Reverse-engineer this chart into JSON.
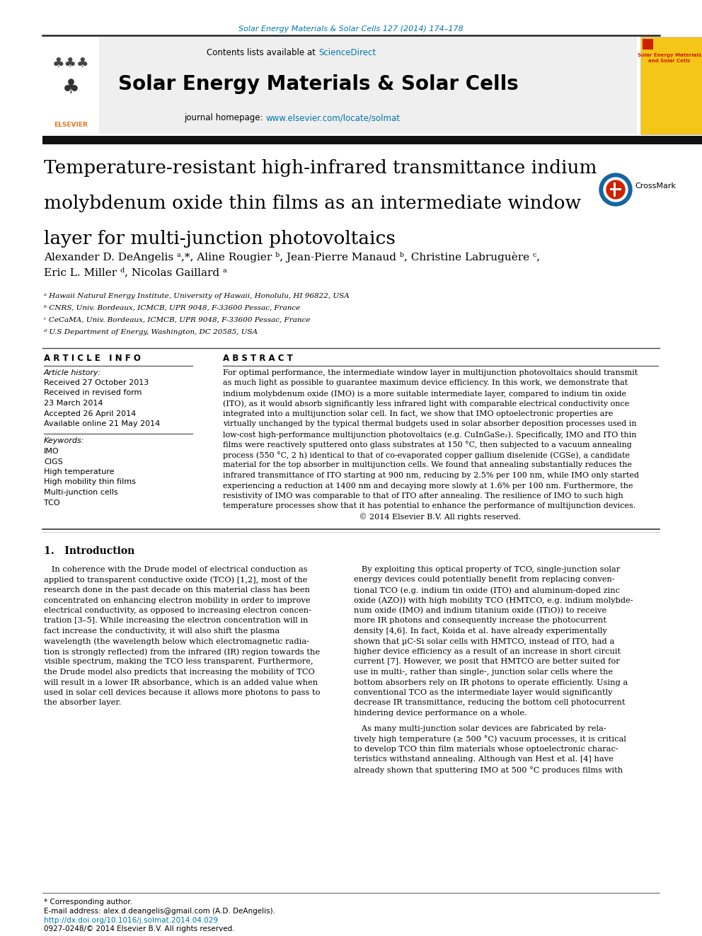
{
  "journal_ref": "Solar Energy Materials & Solar Cells 127 (2014) 174–178",
  "sciencedirect": "ScienceDirect",
  "journal_name": "Solar Energy Materials & Solar Cells",
  "homepage_url": "www.elsevier.com/locate/solmat",
  "paper_title_l1": "Temperature-resistant high-infrared transmittance indium",
  "paper_title_l2": "molybdenum oxide thin films as an intermediate window",
  "paper_title_l3": "layer for multi-junction photovoltaics",
  "authors_line1": "Alexander D. DeAngelis ᵃ,*, Aline Rougier ᵇ, Jean-Pierre Manaud ᵇ, Christine Labruguère ᶜ,",
  "authors_line2": "Eric L. Miller ᵈ, Nicolas Gaillard ᵃ",
  "affil_a": "ᵃ Hawaii Natural Energy Institute, University of Hawaii, Honolulu, HI 96822, USA",
  "affil_b": "ᵇ CNRS, Univ. Bordeaux, ICMCB, UPR 9048, F-33600 Pessac, France",
  "affil_c": "ᶜ CeCaMA, Univ. Bordeaux, ICMCB, UPR 9048, F-33600 Pessac, France",
  "affil_d": "ᵈ U.S Department of Energy, Washington, DC 20585, USA",
  "article_info_title": "A R T I C L E   I N F O",
  "abstract_title": "A B S T R A C T",
  "keywords": [
    "IMO",
    "CIGS",
    "High temperature",
    "High mobility thin films",
    "Multi-junction cells",
    "TCO"
  ],
  "abstract_lines": [
    "For optimal performance, the intermediate window layer in multijunction photovoltaics should transmit",
    "as much light as possible to guarantee maximum device efficiency. In this work, we demonstrate that",
    "indium molybdenum oxide (IMO) is a more suitable intermediate layer, compared to indium tin oxide",
    "(ITO), as it would absorb significantly less infrared light with comparable electrical conductivity once",
    "integrated into a multijunction solar cell. In fact, we show that IMO optoelectronic properties are",
    "virtually unchanged by the typical thermal budgets used in solar absorber deposition processes used in",
    "low-cost high-performance multijunction photovoltaics (e.g. CuInGaSe₂). Specifically, IMO and ITO thin",
    "films were reactively sputtered onto glass substrates at 150 °C, then subjected to a vacuum annealing",
    "process (550 °C, 2 h) identical to that of co-evaporated copper gallium diselenide (CGSe), a candidate",
    "material for the top absorber in multijunction cells. We found that annealing substantially reduces the",
    "infrared transmittance of ITO starting at 900 nm, reducing by 2.5% per 100 nm, while IMO only started",
    "experiencing a reduction at 1400 nm and decaying more slowly at 1.6% per 100 nm. Furthermore, the",
    "resistivity of IMO was comparable to that of ITO after annealing. The resilience of IMO to such high",
    "temperature processes show that it has potential to enhance the performance of multijunction devices.",
    "                                                       © 2014 Elsevier B.V. All rights reserved."
  ],
  "intro1_lines": [
    "   In coherence with the Drude model of electrical conduction as",
    "applied to transparent conductive oxide (TCO) [1,2], most of the",
    "research done in the past decade on this material class has been",
    "concentrated on enhancing electron mobility in order to improve",
    "electrical conductivity, as opposed to increasing electron concen-",
    "tration [3–5]. While increasing the electron concentration will in",
    "fact increase the conductivity, it will also shift the plasma",
    "wavelength (the wavelength below which electromagnetic radia-",
    "tion is strongly reflected) from the infrared (IR) region towards the",
    "visible spectrum, making the TCO less transparent. Furthermore,",
    "the Drude model also predicts that increasing the mobility of TCO",
    "will result in a lower IR absorbance, which is an added value when",
    "used in solar cell devices because it allows more photons to pass to",
    "the absorber layer."
  ],
  "intro2_lines": [
    "   By exploiting this optical property of TCO, single-junction solar",
    "energy devices could potentially benefit from replacing conven-",
    "tional TCO (e.g. indium tin oxide (ITO) and aluminum-doped zinc",
    "oxide (AZO)) with high mobility TCO (HMTCO, e.g. indium molybde-",
    "num oxide (IMO) and indium titanium oxide (ITiO)) to receive",
    "more IR photons and consequently increase the photocurrent",
    "density [4,6]. In fact, Koida et al. have already experimentally",
    "shown that µC-Si solar cells with HMTCO, instead of ITO, had a",
    "higher device efficiency as a result of an increase in short circuit",
    "current [7]. However, we posit that HMTCO are better suited for",
    "use in multi-, rather than single-, junction solar cells where the",
    "bottom absorbers rely on IR photons to operate efficiently. Using a",
    "conventional TCO as the intermediate layer would significantly",
    "decrease IR transmittance, reducing the bottom cell photocurrent",
    "hindering device performance on a whole."
  ],
  "intro3_lines": [
    "   As many multi-junction solar devices are fabricated by rela-",
    "tively high temperature (≥ 500 °C) vacuum processes, it is critical",
    "to develop TCO thin film materials whose optoelectronic charac-",
    "teristics withstand annealing. Although van Hest et al. [4] have",
    "already shown that sputtering IMO at 500 °C produces films with"
  ],
  "footer_star": "* Corresponding author.",
  "footer_email": "E-mail address: alex.d.deangelis@gmail.com (A.D. DeAngelis).",
  "footer_doi": "http://dx.doi.org/10.1016/j.solmat.2014.04.029",
  "footer_issn": "0927-0248/© 2014 Elsevier B.V. All rights reserved.",
  "link_color": "#0077aa",
  "orange": "#e87722",
  "cover_text": "Solar Energy Materials\nand Solar Cells"
}
